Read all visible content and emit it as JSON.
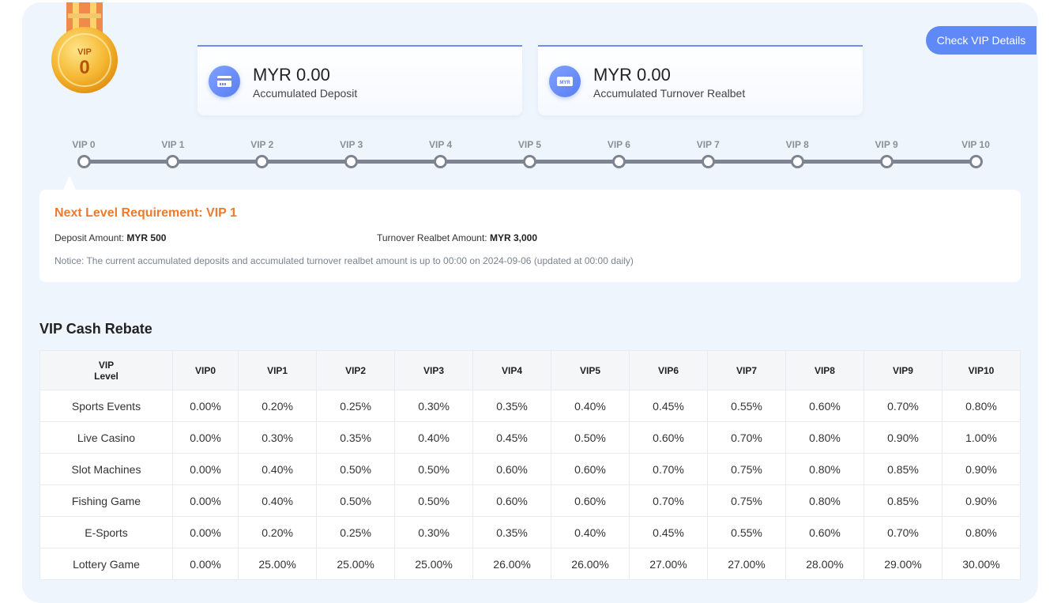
{
  "header": {
    "medal_text": "VIP",
    "medal_level": "0",
    "check_btn_label": "Check VIP Details"
  },
  "cards": [
    {
      "amount": "MYR 0.00",
      "label": "Accumulated Deposit",
      "icon": "card-icon"
    },
    {
      "amount": "MYR 0.00",
      "label": "Accumulated Turnover Realbet",
      "icon": "banknote-icon",
      "icon_text": "MYR"
    }
  ],
  "levels": [
    "VIP 0",
    "VIP 1",
    "VIP 2",
    "VIP 3",
    "VIP 4",
    "VIP 5",
    "VIP 6",
    "VIP 7",
    "VIP 8",
    "VIP 9",
    "VIP 10"
  ],
  "requirement": {
    "title": "Next Level Requirement: VIP 1",
    "deposit_label": "Deposit Amount:",
    "deposit_value": "MYR 500",
    "turnover_label": "Turnover Realbet Amount:",
    "turnover_value": "MYR 3,000",
    "notice": "Notice: The current accumulated deposits and accumulated turnover realbet amount is up to 00:00 on 2024-09-06 (updated at 00:00 daily)"
  },
  "rebate": {
    "title": "VIP Cash Rebate",
    "corner_line1": "VIP",
    "corner_line2": "Level",
    "columns": [
      "VIP0",
      "VIP1",
      "VIP2",
      "VIP3",
      "VIP4",
      "VIP5",
      "VIP6",
      "VIP7",
      "VIP8",
      "VIP9",
      "VIP10"
    ],
    "rows": [
      {
        "name": "Sports Events",
        "values": [
          "0.00%",
          "0.20%",
          "0.25%",
          "0.30%",
          "0.35%",
          "0.40%",
          "0.45%",
          "0.55%",
          "0.60%",
          "0.70%",
          "0.80%"
        ]
      },
      {
        "name": "Live Casino",
        "values": [
          "0.00%",
          "0.30%",
          "0.35%",
          "0.40%",
          "0.45%",
          "0.50%",
          "0.60%",
          "0.70%",
          "0.80%",
          "0.90%",
          "1.00%"
        ]
      },
      {
        "name": "Slot Machines",
        "values": [
          "0.00%",
          "0.40%",
          "0.50%",
          "0.50%",
          "0.60%",
          "0.60%",
          "0.70%",
          "0.75%",
          "0.80%",
          "0.85%",
          "0.90%"
        ]
      },
      {
        "name": "Fishing Game",
        "values": [
          "0.00%",
          "0.40%",
          "0.50%",
          "0.50%",
          "0.60%",
          "0.60%",
          "0.70%",
          "0.75%",
          "0.80%",
          "0.85%",
          "0.90%"
        ]
      },
      {
        "name": "E-Sports",
        "values": [
          "0.00%",
          "0.20%",
          "0.25%",
          "0.30%",
          "0.35%",
          "0.40%",
          "0.45%",
          "0.55%",
          "0.60%",
          "0.70%",
          "0.80%"
        ]
      },
      {
        "name": "Lottery Game",
        "values": [
          "0.00%",
          "25.00%",
          "25.00%",
          "25.00%",
          "26.00%",
          "26.00%",
          "27.00%",
          "27.00%",
          "28.00%",
          "29.00%",
          "30.00%"
        ]
      }
    ]
  },
  "colors": {
    "accent": "#5f89f7",
    "requirement_title": "#f07a2a",
    "track": "#7d8491",
    "panel_bg": "#eef5fd"
  }
}
